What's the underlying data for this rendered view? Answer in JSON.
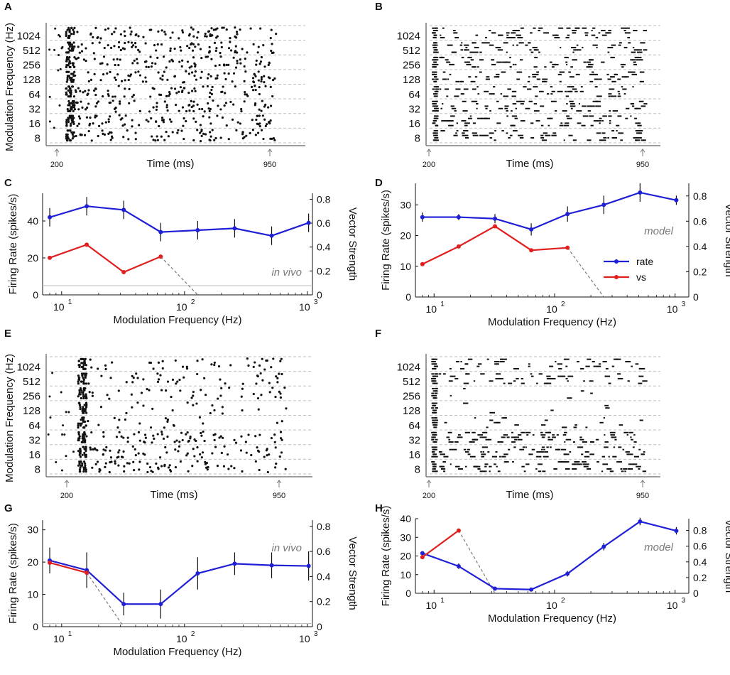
{
  "figure": {
    "description": "Raster plots and modulation transfer functions, in vivo vs model"
  },
  "colors": {
    "rate": "#1f1fd6",
    "vs": "#e01f1f",
    "grid": "#bdbdbd",
    "axis": "#7a7a7a",
    "ink": "#111111",
    "annot": "#7a7a7a"
  },
  "chart_data": [
    {
      "panel": "A",
      "type": "scatter",
      "subtype": "raster",
      "xlabel": "Time (ms)",
      "ylabel": "Modulation Frequency (Hz)",
      "y_categories": [
        "8",
        "16",
        "32",
        "64",
        "128",
        "256",
        "512",
        "1024"
      ],
      "stim_markers": [
        "200",
        "950"
      ],
      "onset": "200",
      "offset": "950",
      "density": "high",
      "style": "dots"
    },
    {
      "panel": "B",
      "type": "scatter",
      "subtype": "raster",
      "xlabel": "Time (ms)",
      "ylabel": "",
      "y_categories": [
        "8",
        "16",
        "32",
        "64",
        "128",
        "256",
        "512",
        "1024"
      ],
      "stim_markers": [
        "200",
        "950"
      ],
      "onset": "200",
      "offset": "950",
      "density": "high",
      "style": "dashes"
    },
    {
      "panel": "C",
      "type": "line",
      "xscale": "log",
      "xlabel": "Modulation Frequency (Hz)",
      "ylabel": "Firing Rate (spikes/s)",
      "y2label": "Vector Strength",
      "annotation": "in vivo",
      "xlim": [
        7,
        1100
      ],
      "ylim": [
        0,
        55
      ],
      "y2lim": [
        0,
        0.85
      ],
      "yticks": [
        "0",
        "20",
        "40"
      ],
      "y2ticks": [
        "0",
        "0.2",
        "0.4",
        "0.6",
        "0.8"
      ],
      "xticks": [
        "10",
        "10",
        "10"
      ],
      "xtick_exps": [
        "1",
        "2",
        "3"
      ],
      "baseline": 5,
      "series": [
        {
          "name": "rate",
          "axis": "left",
          "x": [
            8,
            16,
            32,
            64,
            128,
            256,
            512,
            1024
          ],
          "values": [
            42,
            48,
            46,
            34,
            35,
            36,
            32,
            39
          ],
          "err": [
            5,
            5,
            5,
            5,
            5,
            5,
            5,
            5
          ]
        },
        {
          "name": "vs",
          "axis": "right",
          "x": [
            8,
            16,
            32,
            64
          ],
          "values": [
            0.31,
            0.42,
            0.19,
            0.32
          ],
          "err": [
            0,
            0,
            0,
            0
          ]
        }
      ],
      "dashed_extension": {
        "from": [
          64,
          0.32
        ],
        "to": [
          128,
          0
        ]
      }
    },
    {
      "panel": "D",
      "type": "line",
      "xscale": "log",
      "xlabel": "Modulation Frequency (Hz)",
      "ylabel": "Firing Rate (spikes/s)",
      "y2label": "Vector Strength",
      "annotation": "model",
      "xlim": [
        7,
        1300
      ],
      "ylim": [
        0,
        37
      ],
      "y2lim": [
        0,
        0.9
      ],
      "yticks": [
        "0",
        "10",
        "20",
        "30"
      ],
      "y2ticks": [
        "0",
        "0.2",
        "0.4",
        "0.6",
        "0.8"
      ],
      "xticks": [
        "10",
        "10",
        "10"
      ],
      "xtick_exps": [
        "1",
        "2",
        "3"
      ],
      "legend": {
        "position": "lower-right",
        "entries": [
          "rate",
          "vs"
        ]
      },
      "series": [
        {
          "name": "rate",
          "axis": "left",
          "x": [
            8,
            16,
            32,
            64,
            128,
            256,
            512,
            1024
          ],
          "values": [
            26,
            26,
            25.5,
            22,
            27,
            30,
            34,
            31.5
          ],
          "err": [
            1.5,
            1,
            1.5,
            2,
            2.5,
            3,
            3,
            1.5
          ]
        },
        {
          "name": "vs",
          "axis": "right",
          "x": [
            8,
            16,
            32,
            64,
            128
          ],
          "values": [
            0.26,
            0.4,
            0.56,
            0.37,
            0.39
          ],
          "err": [
            0,
            0,
            0,
            0,
            0
          ]
        }
      ],
      "dashed_extension": {
        "from": [
          128,
          0.39
        ],
        "to": [
          256,
          0
        ]
      }
    },
    {
      "panel": "E",
      "type": "scatter",
      "subtype": "raster",
      "xlabel": "Time (ms)",
      "ylabel": "Modulation Frequency (Hz)",
      "y_categories": [
        "8",
        "16",
        "32",
        "64",
        "128",
        "256",
        "512",
        "1024"
      ],
      "stim_markers": [
        "200",
        "950"
      ],
      "onset": "200",
      "offset": "950",
      "density": "medium",
      "style": "dots"
    },
    {
      "panel": "F",
      "type": "scatter",
      "subtype": "raster",
      "xlabel": "Time (ms)",
      "ylabel": "",
      "y_categories": [
        "8",
        "16",
        "32",
        "64",
        "128",
        "256",
        "512",
        "1024"
      ],
      "stim_markers": [
        "200",
        "950"
      ],
      "onset": "200",
      "offset": "950",
      "density": "medium",
      "style": "dashes"
    },
    {
      "panel": "G",
      "type": "line",
      "xscale": "log",
      "xlabel": "Modulation Frequency (Hz)",
      "ylabel": "Firing Rate (spikes/s)",
      "y2label": "Vector Strength",
      "annotation": "in vivo",
      "xlim": [
        7,
        1100
      ],
      "ylim": [
        0,
        33
      ],
      "y2lim": [
        0,
        0.85
      ],
      "yticks": [
        "0",
        "10",
        "20",
        "30"
      ],
      "y2ticks": [
        "0",
        "0.2",
        "0.4",
        "0.6",
        "0.8"
      ],
      "xticks": [
        "10",
        "10",
        "10"
      ],
      "xtick_exps": [
        "1",
        "2",
        "3"
      ],
      "baseline": 1,
      "series": [
        {
          "name": "rate",
          "axis": "left",
          "x": [
            8,
            16,
            32,
            64,
            128,
            256,
            512,
            1024
          ],
          "values": [
            20.5,
            17.5,
            7,
            7,
            16.5,
            19.5,
            19,
            18.8
          ],
          "err": [
            4,
            5.5,
            3.5,
            4.5,
            5,
            3.5,
            4,
            4.5
          ]
        },
        {
          "name": "vs",
          "axis": "right",
          "x": [
            8,
            16
          ],
          "values": [
            0.51,
            0.43
          ],
          "err": [
            0,
            0
          ]
        }
      ],
      "dashed_extension": {
        "from": [
          16,
          0.43
        ],
        "to": [
          32,
          0
        ]
      }
    },
    {
      "panel": "H",
      "type": "line",
      "xscale": "log",
      "xlabel": "Modulation Frequency (Hz)",
      "ylabel": "Firing Rate (spikes/s)",
      "y2label": "Vector Strength",
      "annotation": "model",
      "xlim": [
        7,
        1300
      ],
      "ylim": [
        0,
        40
      ],
      "y2lim": [
        0,
        0.95
      ],
      "yticks": [
        "0",
        "10",
        "20",
        "30",
        "40"
      ],
      "y2ticks": [
        "0",
        "0.2",
        "0.4",
        "0.6",
        "0.8"
      ],
      "xticks": [
        "10",
        "10",
        "10"
      ],
      "xtick_exps": [
        "1",
        "2",
        "3"
      ],
      "series": [
        {
          "name": "rate",
          "axis": "left",
          "x": [
            8,
            16,
            32,
            64,
            128,
            256,
            512,
            1024
          ],
          "values": [
            21.5,
            14.5,
            2.5,
            2,
            10.5,
            25,
            38.5,
            33.5
          ],
          "err": [
            1,
            1.5,
            0.5,
            0.5,
            1.5,
            2,
            2,
            2
          ]
        },
        {
          "name": "vs",
          "axis": "right",
          "x": [
            8,
            16
          ],
          "values": [
            0.46,
            0.8
          ],
          "err": [
            0,
            0
          ]
        }
      ],
      "dashed_extension": {
        "from": [
          16,
          0.8
        ],
        "to": [
          32,
          0
        ]
      }
    }
  ]
}
